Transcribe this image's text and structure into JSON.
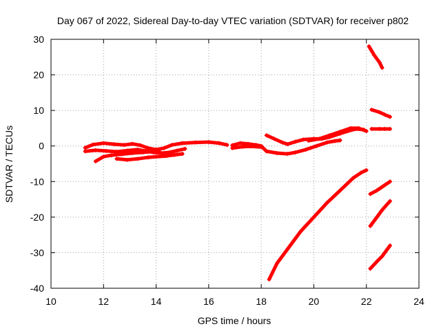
{
  "chart_data": {
    "type": "scatter",
    "title": "Day 067 of 2022, Sidereal Day-to-day VTEC variation (SDTVAR) for receiver p802",
    "xlabel": "GPS time / hours",
    "ylabel": "SDTVAR / TECUs",
    "xlim": [
      10,
      24
    ],
    "ylim": [
      -40,
      30
    ],
    "x_ticks": [
      10,
      12,
      14,
      16,
      18,
      20,
      22,
      24
    ],
    "y_ticks": [
      -40,
      -30,
      -20,
      -10,
      0,
      10,
      20,
      30
    ],
    "grid": true,
    "marker": "plus",
    "color": "#ff0000",
    "series": [
      {
        "points": [
          [
            11.3,
            -0.5
          ],
          [
            11.6,
            0.4
          ],
          [
            12.0,
            0.8
          ],
          [
            12.4,
            0.5
          ],
          [
            12.8,
            0.3
          ],
          [
            13.1,
            0.6
          ],
          [
            13.4,
            0.2
          ],
          [
            13.7,
            -0.6
          ],
          [
            14.0,
            -1.0
          ],
          [
            14.3,
            -0.6
          ],
          [
            14.6,
            0.3
          ],
          [
            15.0,
            0.8
          ],
          [
            15.5,
            1.0
          ],
          [
            16.0,
            1.1
          ],
          [
            16.4,
            0.8
          ],
          [
            16.7,
            0.3
          ]
        ]
      },
      {
        "points": [
          [
            11.3,
            -1.5
          ],
          [
            11.7,
            -1.2
          ],
          [
            12.1,
            -1.4
          ],
          [
            12.5,
            -1.6
          ],
          [
            12.9,
            -1.3
          ],
          [
            13.3,
            -1.0
          ],
          [
            13.6,
            -1.4
          ],
          [
            13.9,
            -1.8
          ],
          [
            14.2,
            -2.0
          ],
          [
            14.5,
            -1.8
          ],
          [
            14.8,
            -1.3
          ],
          [
            15.1,
            -0.8
          ]
        ]
      },
      {
        "points": [
          [
            11.7,
            -4.3
          ],
          [
            12.0,
            -3.0
          ],
          [
            12.3,
            -2.6
          ],
          [
            12.7,
            -2.3
          ],
          [
            13.1,
            -2.0
          ],
          [
            13.5,
            -1.8
          ],
          [
            13.8,
            -1.6
          ],
          [
            14.1,
            -1.4
          ]
        ]
      },
      {
        "points": [
          [
            12.5,
            -3.6
          ],
          [
            12.9,
            -3.9
          ],
          [
            13.3,
            -3.6
          ],
          [
            13.7,
            -3.2
          ],
          [
            14.0,
            -3.0
          ],
          [
            14.4,
            -2.8
          ],
          [
            14.7,
            -2.5
          ],
          [
            15.0,
            -2.2
          ]
        ]
      },
      {
        "points": [
          [
            16.9,
            0.2
          ],
          [
            17.2,
            0.8
          ],
          [
            17.5,
            0.6
          ],
          [
            17.8,
            0.3
          ],
          [
            18.0,
            0.0
          ],
          [
            18.2,
            -1.5
          ],
          [
            18.6,
            -2.0
          ],
          [
            19.0,
            -2.2
          ],
          [
            19.3,
            -1.8
          ],
          [
            19.7,
            -1.0
          ],
          [
            20.1,
            0.0
          ],
          [
            20.5,
            1.0
          ],
          [
            20.8,
            1.4
          ],
          [
            21.0,
            1.6
          ]
        ]
      },
      {
        "points": [
          [
            16.9,
            -0.6
          ],
          [
            17.3,
            -0.2
          ],
          [
            17.6,
            -0.1
          ],
          [
            18.0,
            -0.3
          ]
        ]
      },
      {
        "points": [
          [
            18.2,
            3.0
          ],
          [
            18.5,
            2.0
          ],
          [
            18.8,
            1.0
          ],
          [
            19.0,
            0.5
          ],
          [
            19.3,
            1.2
          ],
          [
            19.6,
            1.8
          ],
          [
            20.0,
            2.0
          ],
          [
            20.3,
            2.0
          ],
          [
            20.6,
            2.5
          ],
          [
            21.0,
            3.5
          ],
          [
            21.3,
            4.2
          ],
          [
            21.6,
            4.8
          ],
          [
            21.9,
            4.6
          ]
        ]
      },
      {
        "points": [
          [
            19.8,
            1.5
          ],
          [
            20.2,
            2.0
          ],
          [
            20.6,
            3.0
          ],
          [
            21.0,
            4.0
          ],
          [
            21.4,
            5.0
          ],
          [
            21.7,
            5.0
          ],
          [
            22.0,
            4.2
          ]
        ]
      },
      {
        "points": [
          [
            18.3,
            -37.5
          ],
          [
            18.6,
            -33.0
          ],
          [
            19.0,
            -29.0
          ],
          [
            19.5,
            -24.0
          ],
          [
            20.0,
            -20.0
          ],
          [
            20.5,
            -16.0
          ],
          [
            21.0,
            -12.5
          ],
          [
            21.5,
            -9.0
          ],
          [
            21.8,
            -7.5
          ],
          [
            22.0,
            -6.8
          ]
        ]
      },
      {
        "points": [
          [
            22.1,
            28.0
          ],
          [
            22.3,
            25.5
          ],
          [
            22.5,
            23.5
          ],
          [
            22.6,
            22.0
          ]
        ]
      },
      {
        "points": [
          [
            22.2,
            10.2
          ],
          [
            22.5,
            9.5
          ],
          [
            22.7,
            8.8
          ],
          [
            22.9,
            8.2
          ]
        ]
      },
      {
        "points": [
          [
            22.2,
            4.8
          ],
          [
            22.5,
            4.8
          ],
          [
            22.7,
            4.8
          ],
          [
            22.9,
            4.8
          ]
        ]
      },
      {
        "points": [
          [
            22.15,
            -13.5
          ],
          [
            22.4,
            -12.5
          ],
          [
            22.6,
            -11.5
          ],
          [
            22.9,
            -10.0
          ]
        ]
      },
      {
        "points": [
          [
            22.15,
            -22.5
          ],
          [
            22.4,
            -20.0
          ],
          [
            22.6,
            -18.0
          ],
          [
            22.9,
            -15.5
          ]
        ]
      },
      {
        "points": [
          [
            22.15,
            -34.5
          ],
          [
            22.4,
            -32.5
          ],
          [
            22.6,
            -31.0
          ],
          [
            22.9,
            -28.0
          ]
        ]
      }
    ]
  }
}
